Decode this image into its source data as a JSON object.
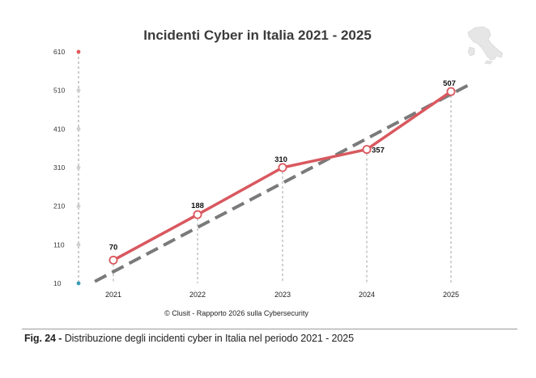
{
  "chart_data": {
    "type": "line",
    "title": "Incidenti Cyber in Italia 2021 - 2025",
    "source": "© Clusit - Rapporto 2026 sulla Cybersecurity",
    "categories": [
      "2021",
      "2022",
      "2023",
      "2024",
      "2025"
    ],
    "series": [
      {
        "values": [
          70,
          188,
          310,
          357,
          507
        ],
        "color": "#d9585f",
        "style": "solid",
        "markers": true,
        "data_labels": true
      },
      {
        "values": [
          40,
          155,
          270,
          385,
          500
        ],
        "color": "#7a7a7a",
        "style": "dashed",
        "trend": true
      }
    ],
    "y_ticks": [
      "610",
      "510",
      "410",
      "310",
      "210",
      "110",
      "10"
    ],
    "ylim": [
      10,
      610
    ],
    "grid": false,
    "legend": "none",
    "accent_top": "#e05a5a",
    "accent_bottom": "#3a9bb5"
  },
  "caption": {
    "prefix": "Fig. 24 - ",
    "text": "Distribuzione degli incidenti cyber in Italia nel periodo 2021 - 2025"
  },
  "icon": "italy-map-icon"
}
